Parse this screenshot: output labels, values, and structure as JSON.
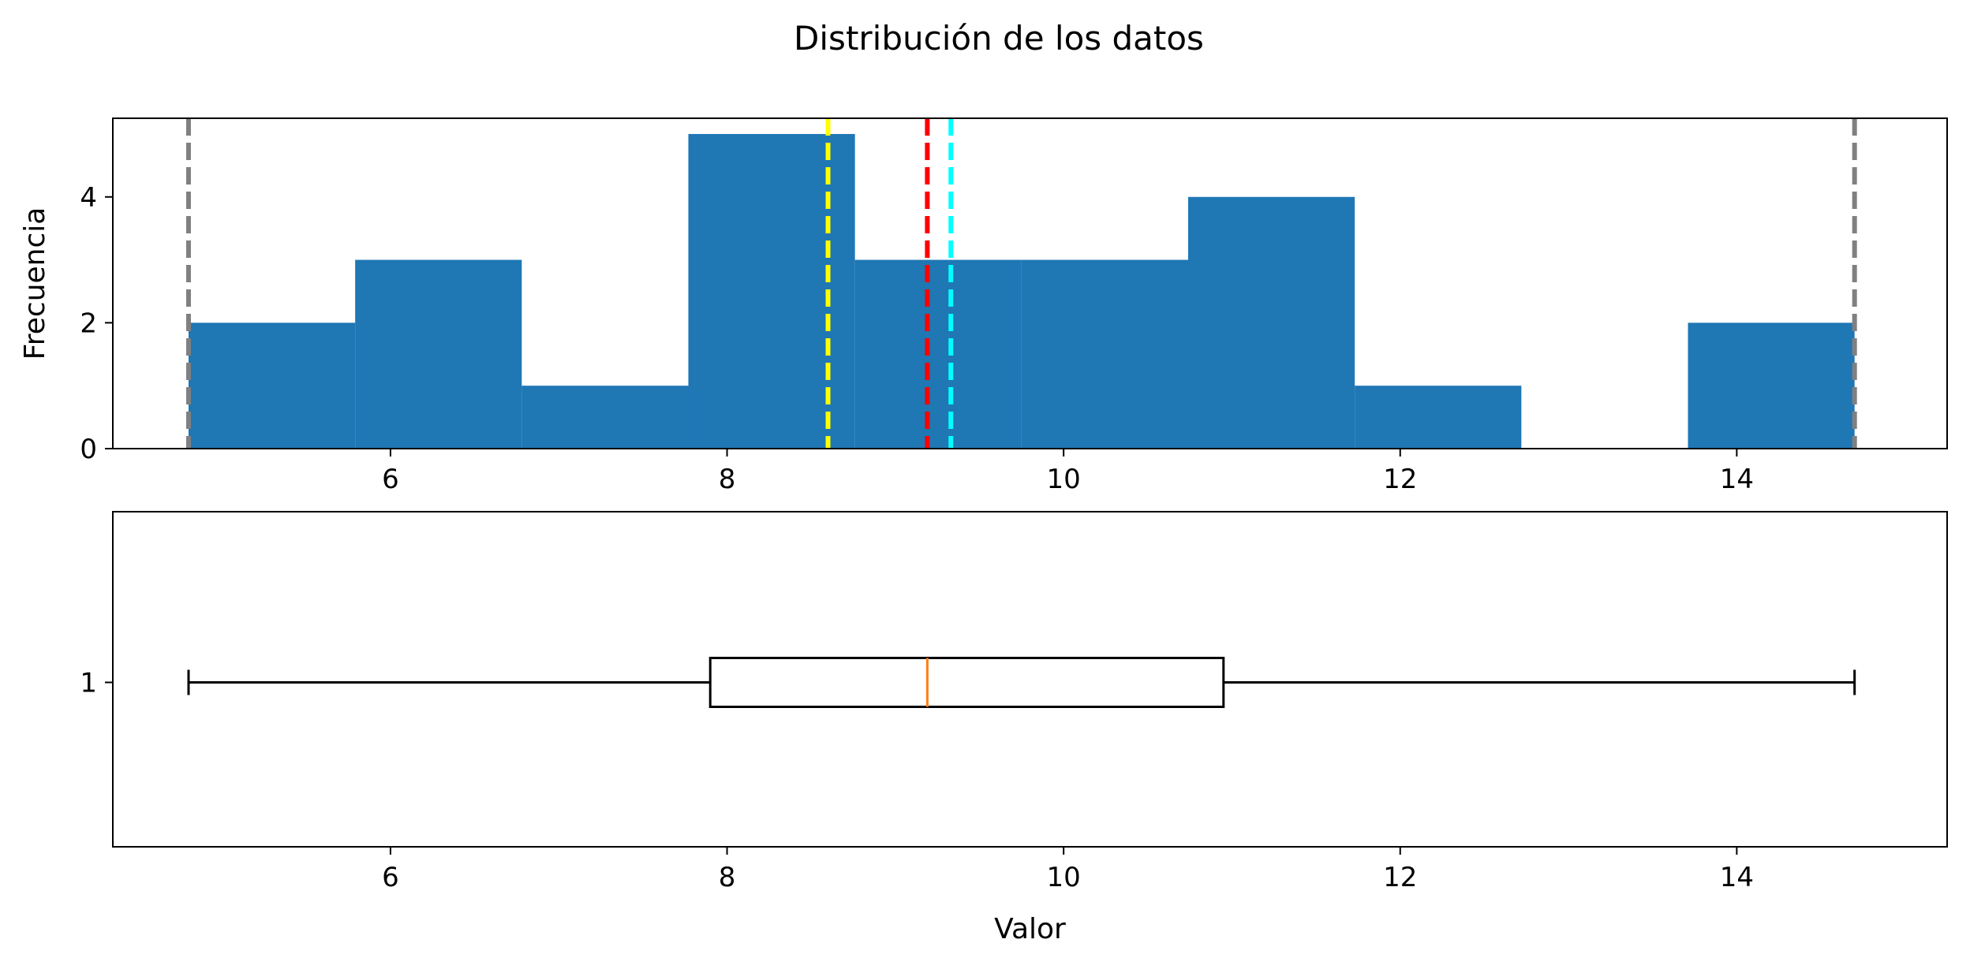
{
  "chart_data": [
    {
      "type": "histogram",
      "title": "Distribución de los datos",
      "xlabel": "",
      "ylabel": "Frecuencia",
      "xlim": [
        4.35,
        15.25
      ],
      "ylim": [
        0,
        5.25
      ],
      "xticks": [
        6,
        8,
        10,
        12,
        14
      ],
      "yticks": [
        0,
        2,
        4
      ],
      "grid": false,
      "bins": [
        {
          "start": 4.8,
          "end": 5.79,
          "count": 2
        },
        {
          "start": 5.79,
          "end": 6.78,
          "count": 3
        },
        {
          "start": 6.78,
          "end": 7.77,
          "count": 1
        },
        {
          "start": 7.77,
          "end": 8.76,
          "count": 5
        },
        {
          "start": 8.76,
          "end": 9.75,
          "count": 3
        },
        {
          "start": 9.75,
          "end": 10.74,
          "count": 3
        },
        {
          "start": 10.74,
          "end": 11.73,
          "count": 4
        },
        {
          "start": 11.73,
          "end": 12.72,
          "count": 1
        },
        {
          "start": 12.72,
          "end": 13.71,
          "count": 0
        },
        {
          "start": 13.71,
          "end": 14.7,
          "count": 2
        }
      ],
      "bar_color": "#1f77b4",
      "reference_lines": [
        {
          "x": 4.8,
          "color": "#808080"
        },
        {
          "x": 8.6,
          "color": "#ffff00"
        },
        {
          "x": 9.19,
          "color": "#ff0000"
        },
        {
          "x": 9.33,
          "color": "#00ffff"
        },
        {
          "x": 14.7,
          "color": "#808080"
        }
      ]
    },
    {
      "type": "boxplot",
      "xlabel": "Valor",
      "ylabel": "",
      "xlim": [
        4.35,
        15.25
      ],
      "xticks": [
        6,
        8,
        10,
        12,
        14
      ],
      "yticks": [
        1
      ],
      "box": {
        "min": 4.8,
        "q1": 7.9,
        "median": 9.19,
        "q3": 10.95,
        "max": 14.7
      },
      "median_color": "#ff7f0e"
    }
  ]
}
